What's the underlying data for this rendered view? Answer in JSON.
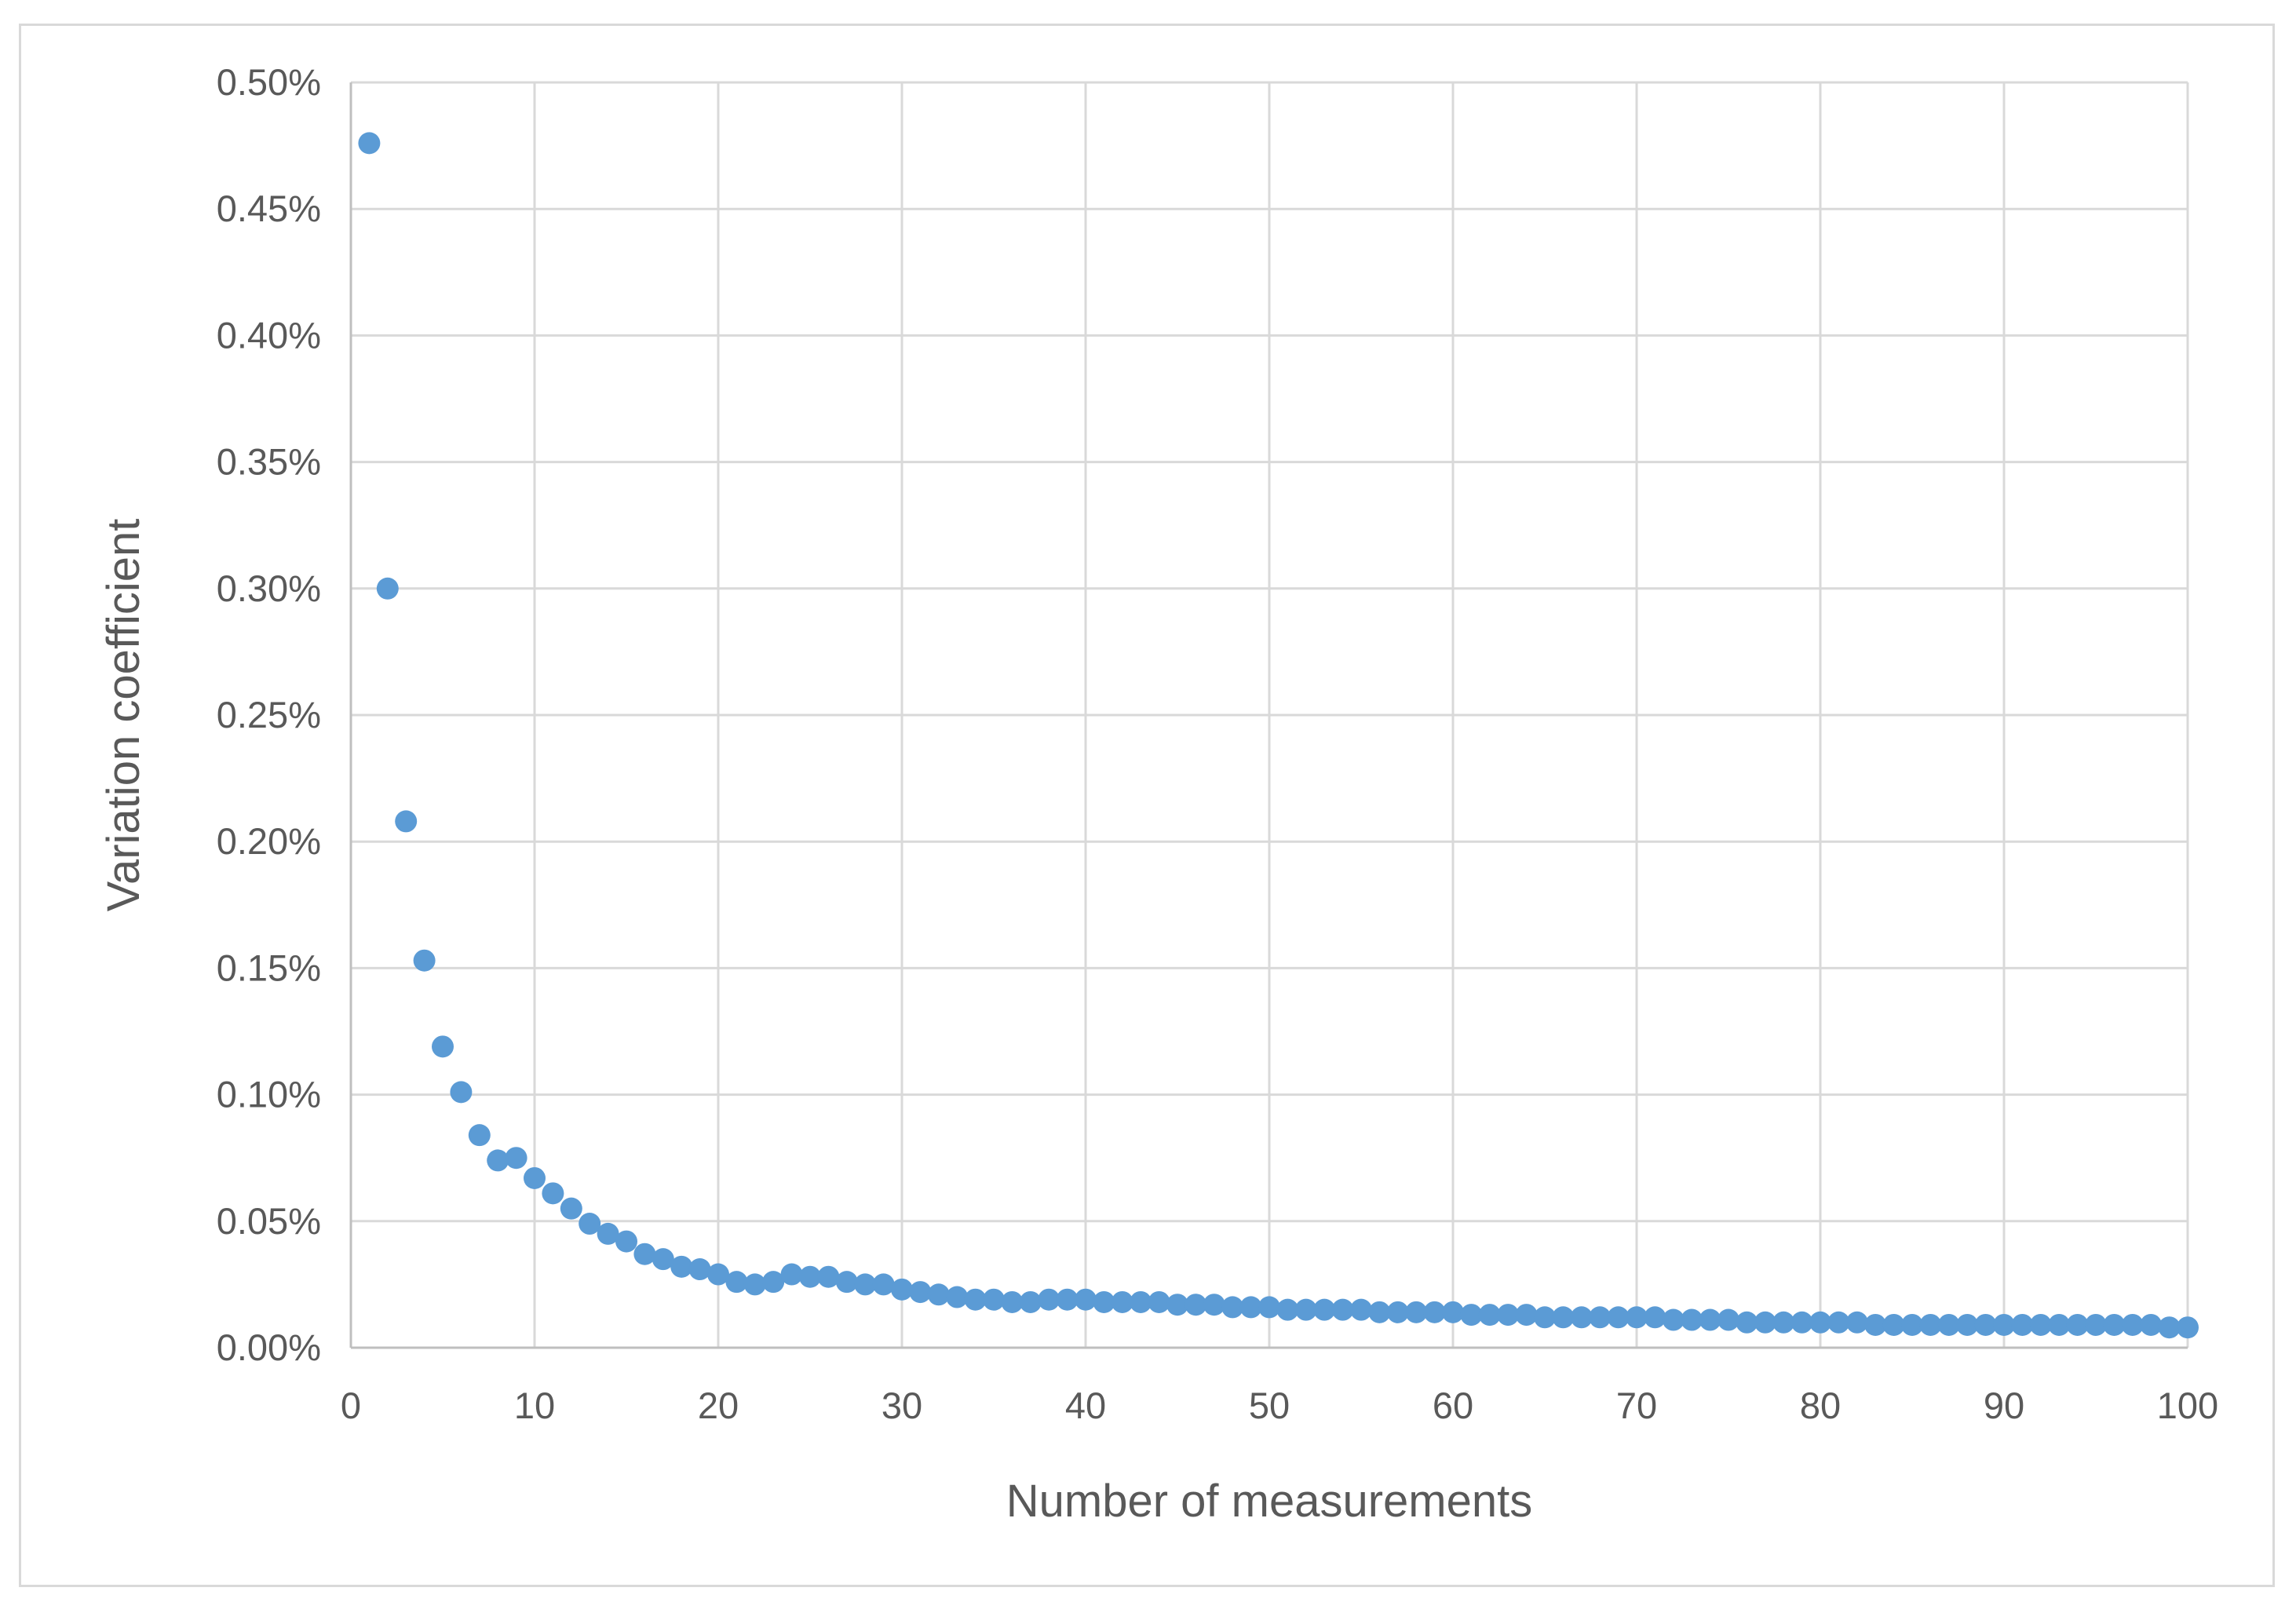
{
  "chart_data": {
    "type": "scatter",
    "title": "",
    "xlabel": "Number of measurements",
    "ylabel": "Variation coefficient",
    "xlim": [
      0,
      100
    ],
    "ylim": [
      0,
      0.5
    ],
    "y_unit": "%",
    "grid": true,
    "legend": "none",
    "marker_color": "#5b9bd5",
    "grid_color": "#d9d9d9",
    "x_ticks": [
      "0",
      "10",
      "20",
      "30",
      "40",
      "50",
      "60",
      "70",
      "80",
      "90",
      "100"
    ],
    "y_ticks": [
      "0.00%",
      "0.05%",
      "0.10%",
      "0.15%",
      "0.20%",
      "0.25%",
      "0.30%",
      "0.35%",
      "0.40%",
      "0.45%",
      "0.50%"
    ],
    "series": [
      {
        "x": [
          1,
          2,
          3,
          4,
          5,
          6,
          7,
          8,
          9,
          10,
          11,
          12,
          13,
          14,
          15,
          16,
          17,
          18,
          19,
          20,
          21,
          22,
          23,
          24,
          25,
          26,
          27,
          28,
          29,
          30,
          31,
          32,
          33,
          34,
          35,
          36,
          37,
          38,
          39,
          40,
          41,
          42,
          43,
          44,
          45,
          46,
          47,
          48,
          49,
          50,
          51,
          52,
          53,
          54,
          55,
          56,
          57,
          58,
          59,
          60,
          61,
          62,
          63,
          64,
          65,
          66,
          67,
          68,
          69,
          70,
          71,
          72,
          73,
          74,
          75,
          76,
          77,
          78,
          79,
          80,
          81,
          82,
          83,
          84,
          85,
          86,
          87,
          88,
          89,
          90,
          91,
          92,
          93,
          94,
          95,
          96,
          97,
          98,
          99,
          100
        ],
        "y": [
          0.476,
          0.3,
          0.208,
          0.153,
          0.119,
          0.101,
          0.084,
          0.074,
          0.075,
          0.067,
          0.061,
          0.055,
          0.049,
          0.045,
          0.042,
          0.037,
          0.035,
          0.032,
          0.031,
          0.029,
          0.026,
          0.025,
          0.026,
          0.029,
          0.028,
          0.028,
          0.026,
          0.025,
          0.025,
          0.023,
          0.022,
          0.021,
          0.02,
          0.019,
          0.019,
          0.018,
          0.018,
          0.019,
          0.019,
          0.019,
          0.018,
          0.018,
          0.018,
          0.018,
          0.017,
          0.017,
          0.017,
          0.016,
          0.016,
          0.016,
          0.015,
          0.015,
          0.015,
          0.015,
          0.015,
          0.014,
          0.014,
          0.014,
          0.014,
          0.014,
          0.013,
          0.013,
          0.013,
          0.013,
          0.012,
          0.012,
          0.012,
          0.012,
          0.012,
          0.012,
          0.012,
          0.011,
          0.011,
          0.011,
          0.011,
          0.01,
          0.01,
          0.01,
          0.01,
          0.01,
          0.01,
          0.01,
          0.009,
          0.009,
          0.009,
          0.009,
          0.009,
          0.009,
          0.009,
          0.009,
          0.009,
          0.009,
          0.009,
          0.009,
          0.009,
          0.009,
          0.009,
          0.009,
          0.008,
          0.008
        ]
      }
    ]
  }
}
